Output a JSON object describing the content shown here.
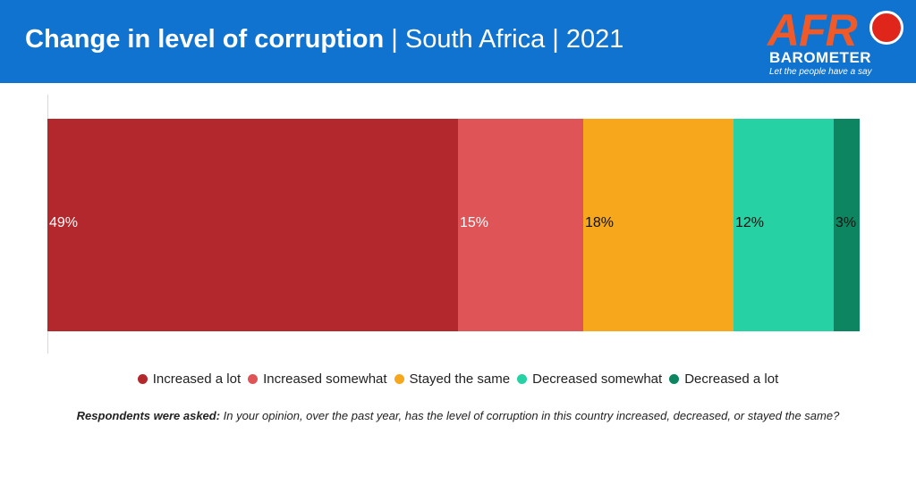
{
  "header": {
    "title_main": "Change in level of corruption",
    "title_rest": " | South Africa | 2021"
  },
  "logo": {
    "afro": "AFR",
    "barometer": "BAROMETER",
    "tagline": "Let the people have a say"
  },
  "chart_data": {
    "type": "bar",
    "orientation": "horizontal-stacked-100",
    "title": "Change in level of corruption | South Africa | 2021",
    "categories": [
      "South Africa"
    ],
    "series": [
      {
        "name": "Increased a lot",
        "value": 49,
        "label": "49%",
        "color": "#b2282c",
        "label_color": "#ffffff"
      },
      {
        "name": "Increased somewhat",
        "value": 15,
        "label": "15%",
        "color": "#de5457",
        "label_color": "#ffffff"
      },
      {
        "name": "Stayed the same",
        "value": 18,
        "label": "18%",
        "color": "#f6a71b",
        "label_color": "#111111"
      },
      {
        "name": "Decreased somewhat",
        "value": 12,
        "label": "12%",
        "color": "#26d1a3",
        "label_color": "#111111"
      },
      {
        "name": "Decreased a lot",
        "value": 3,
        "label": "3%",
        "color": "#0d8560",
        "label_color": "#111111"
      }
    ],
    "legend_position": "bottom",
    "grid": false
  },
  "note": {
    "lead": "Respondents were asked:",
    "text": " In your opinion, over the past year, has the level of corruption in this country increased, decreased, or stayed the same?"
  },
  "colors": {
    "header_bg": "#0f73cf",
    "logo_orange": "#f05a28"
  }
}
